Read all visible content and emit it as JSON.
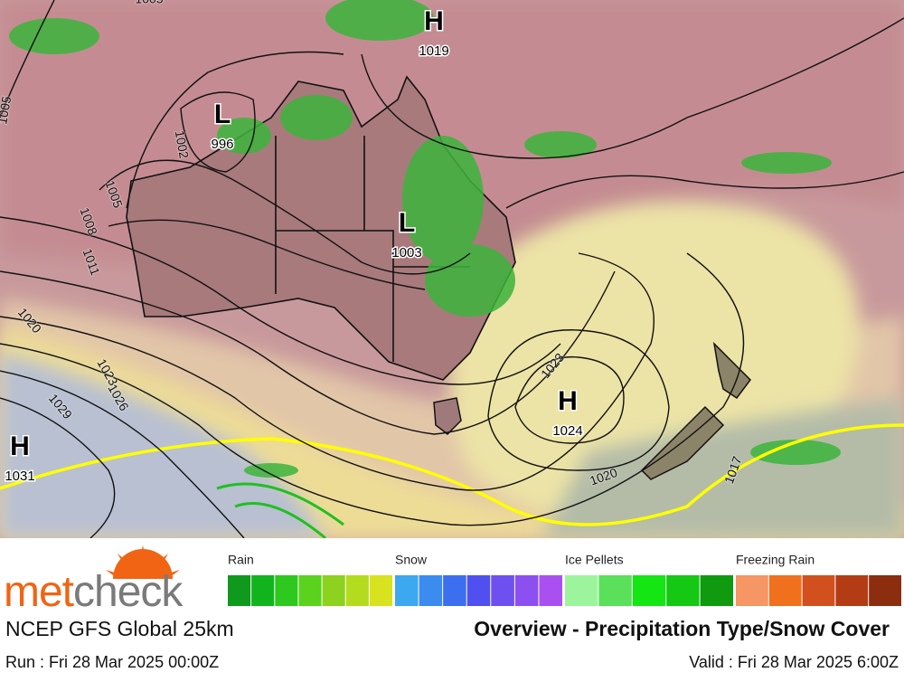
{
  "map": {
    "pressure_centers": [
      {
        "type": "H",
        "value": "1019"
      },
      {
        "type": "L",
        "value": "996"
      },
      {
        "type": "L",
        "value": "1003"
      },
      {
        "type": "H",
        "value": "1024"
      },
      {
        "type": "H",
        "value": "1031"
      }
    ],
    "isobar_labels": [
      "1005",
      "1005",
      "1002",
      "1005",
      "1008",
      "1011",
      "1020",
      "1023",
      "1026",
      "1029",
      "1023",
      "1020",
      "1017"
    ]
  },
  "legend": {
    "groups": [
      {
        "name": "Rain",
        "colors": [
          "#0f9a1e",
          "#12b41e",
          "#2ec81e",
          "#5ad21e",
          "#8cd21e",
          "#b4dc1e",
          "#d8e21e"
        ]
      },
      {
        "name": "Snow",
        "colors": [
          "#3ca8f0",
          "#3c8cf0",
          "#3c6ef0",
          "#5050f0",
          "#6e50f0",
          "#8c50f0",
          "#aa50f0"
        ]
      },
      {
        "name": "Ice Pellets",
        "colors": [
          "#9cf59c",
          "#5ae05a",
          "#14e614",
          "#14c814",
          "#0f9a0f"
        ]
      },
      {
        "name": "Freezing Rain",
        "colors": [
          "#f59664",
          "#f0701e",
          "#d2501e",
          "#b43c14",
          "#8c2d0f"
        ]
      }
    ]
  },
  "footer": {
    "brand": [
      "met",
      "check"
    ],
    "model": "NCEP GFS Global 25km",
    "title": "Overview - Precipitation Type/Snow Cover",
    "run": "Run : Fri 28 Mar 2025 00:00Z",
    "valid": "Valid : Fri 28 Mar 2025 6:00Z"
  }
}
